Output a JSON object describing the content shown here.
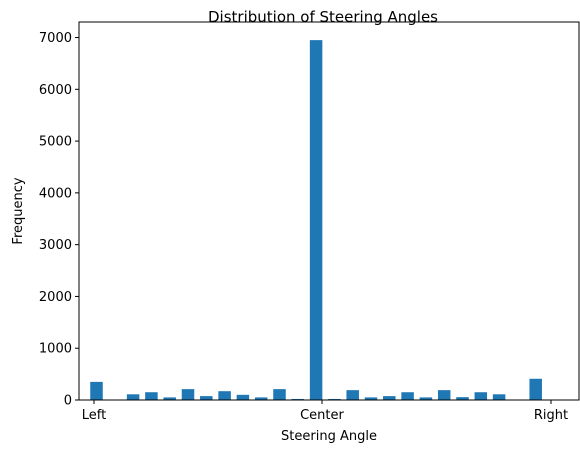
{
  "chart_data": {
    "type": "bar",
    "title": "Distribution of Steering Angles",
    "xlabel": "Steering Angle",
    "ylabel": "Frequency",
    "x_tick_labels": [
      "Left",
      "Center",
      "Right"
    ],
    "y_ticks": [
      0,
      1000,
      2000,
      3000,
      4000,
      5000,
      6000,
      7000
    ],
    "ylim": [
      0,
      7300
    ],
    "bar_color": "#1f77b4",
    "grid": false,
    "values": [
      350,
      0,
      110,
      150,
      50,
      210,
      75,
      170,
      100,
      50,
      210,
      20,
      6950,
      20,
      190,
      50,
      75,
      150,
      50,
      190,
      55,
      150,
      110,
      0,
      410
    ]
  }
}
